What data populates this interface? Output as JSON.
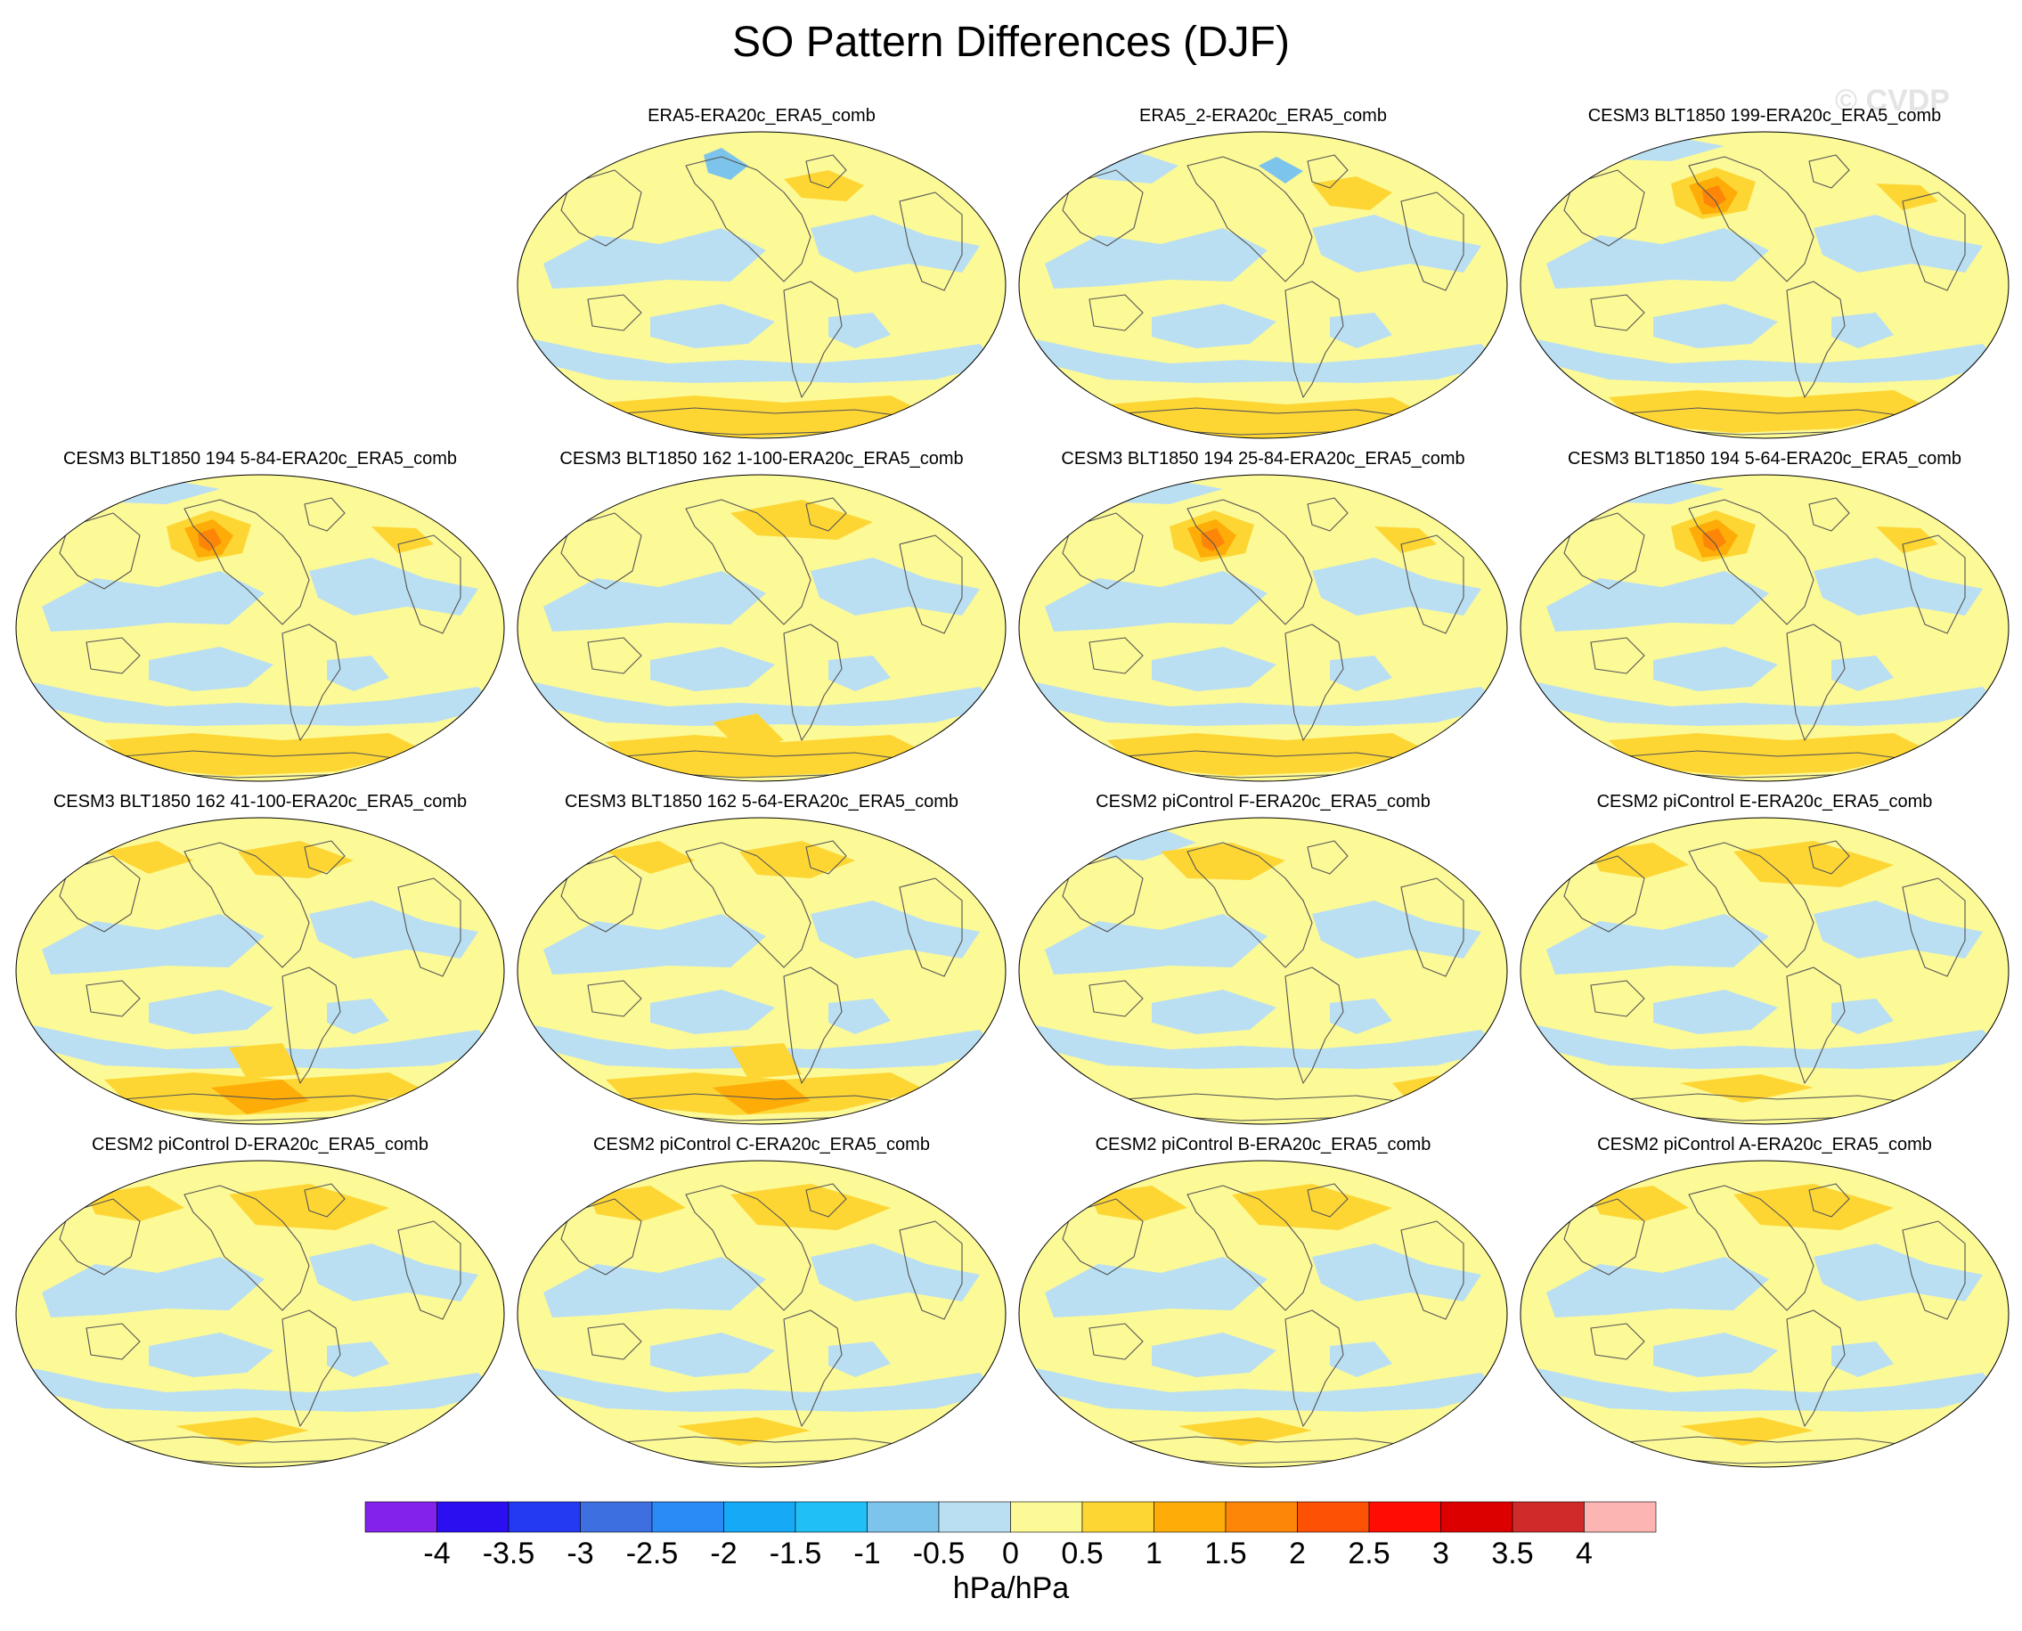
{
  "title": "SO Pattern Differences (DJF)",
  "watermark": "© CVDP",
  "panels": [
    {
      "label": "ERA5-ERA20c_ERA5_comb",
      "pattern": "era5a"
    },
    {
      "label": "ERA5_2-ERA20c_ERA5_comb",
      "pattern": "era5b"
    },
    {
      "label": "CESM3 BLT1850 199-ERA20c_ERA5_comb",
      "pattern": "cesm3-hot"
    },
    {
      "label": "CESM3 BLT1850 194 5-84-ERA20c_ERA5_comb",
      "pattern": "cesm3-hot"
    },
    {
      "label": "CESM3 BLT1850 162 1-100-ERA20c_ERA5_comb",
      "pattern": "cesm3-mild"
    },
    {
      "label": "CESM3 BLT1850 194 25-84-ERA20c_ERA5_comb",
      "pattern": "cesm3-hot"
    },
    {
      "label": "CESM3 BLT1850 194 5-64-ERA20c_ERA5_comb",
      "pattern": "cesm3-hot"
    },
    {
      "label": "CESM3 BLT1850 162 41-100-ERA20c_ERA5_comb",
      "pattern": "cesm3-south"
    },
    {
      "label": "CESM3 BLT1850 162 5-64-ERA20c_ERA5_comb",
      "pattern": "cesm3-south"
    },
    {
      "label": "CESM2 piControl F-ERA20c_ERA5_comb",
      "pattern": "cesm2-blue"
    },
    {
      "label": "CESM2 piControl E-ERA20c_ERA5_comb",
      "pattern": "cesm2"
    },
    {
      "label": "CESM2 piControl D-ERA20c_ERA5_comb",
      "pattern": "cesm2"
    },
    {
      "label": "CESM2 piControl C-ERA20c_ERA5_comb",
      "pattern": "cesm2"
    },
    {
      "label": "CESM2 piControl B-ERA20c_ERA5_comb",
      "pattern": "cesm2"
    },
    {
      "label": "CESM2 piControl A-ERA20c_ERA5_comb",
      "pattern": "cesm2"
    }
  ],
  "colorbar": {
    "colors": [
      "#8222ea",
      "#2b0ff1",
      "#2439f2",
      "#3d6fe0",
      "#2a8af6",
      "#16a9f6",
      "#20c0f7",
      "#7dc4ec",
      "#badff2",
      "#fcf997",
      "#fdd634",
      "#fdac08",
      "#fd8508",
      "#fd5106",
      "#fd0d03",
      "#dd0000",
      "#d02a2a",
      "#fdb5b4"
    ],
    "ticks": [
      "-4",
      "-3.5",
      "-3",
      "-2.5",
      "-2",
      "-1.5",
      "-1",
      "-0.5",
      "0",
      "0.5",
      "1",
      "1.5",
      "2",
      "2.5",
      "3",
      "3.5",
      "4"
    ],
    "units": "hPa/hPa"
  }
}
